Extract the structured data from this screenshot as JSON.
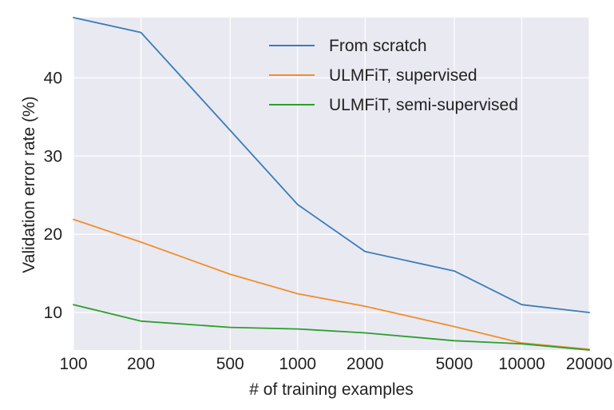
{
  "chart_data": {
    "type": "line",
    "title": "",
    "xlabel": "# of training examples",
    "ylabel": "Validation error rate (%)",
    "xscale": "log",
    "x": [
      100,
      200,
      500,
      1000,
      2000,
      5000,
      10000,
      20000
    ],
    "xticks": [
      "100",
      "200",
      "500",
      "1000",
      "2000",
      "5000",
      "10000",
      "20000"
    ],
    "yticks": [
      "10",
      "20",
      "30",
      "40"
    ],
    "ytick_values": [
      10,
      20,
      30,
      40
    ],
    "xlim": [
      100,
      20000
    ],
    "ylim": [
      5.2,
      47.7
    ],
    "grid": true,
    "legend_position": "top-right",
    "series": [
      {
        "name": "From scratch",
        "color": "#3a7db7",
        "values": [
          47.7,
          45.8,
          33.3,
          23.8,
          17.8,
          15.3,
          11.0,
          10.0
        ]
      },
      {
        "name": "ULMFiT, supervised",
        "color": "#f28e2b",
        "values": [
          21.9,
          19.0,
          14.9,
          12.4,
          10.8,
          8.2,
          6.1,
          5.3
        ]
      },
      {
        "name": "ULMFiT, semi-supervised",
        "color": "#2ca02c",
        "values": [
          11.0,
          8.9,
          8.1,
          7.9,
          7.4,
          6.4,
          6.0,
          5.2
        ]
      }
    ]
  }
}
